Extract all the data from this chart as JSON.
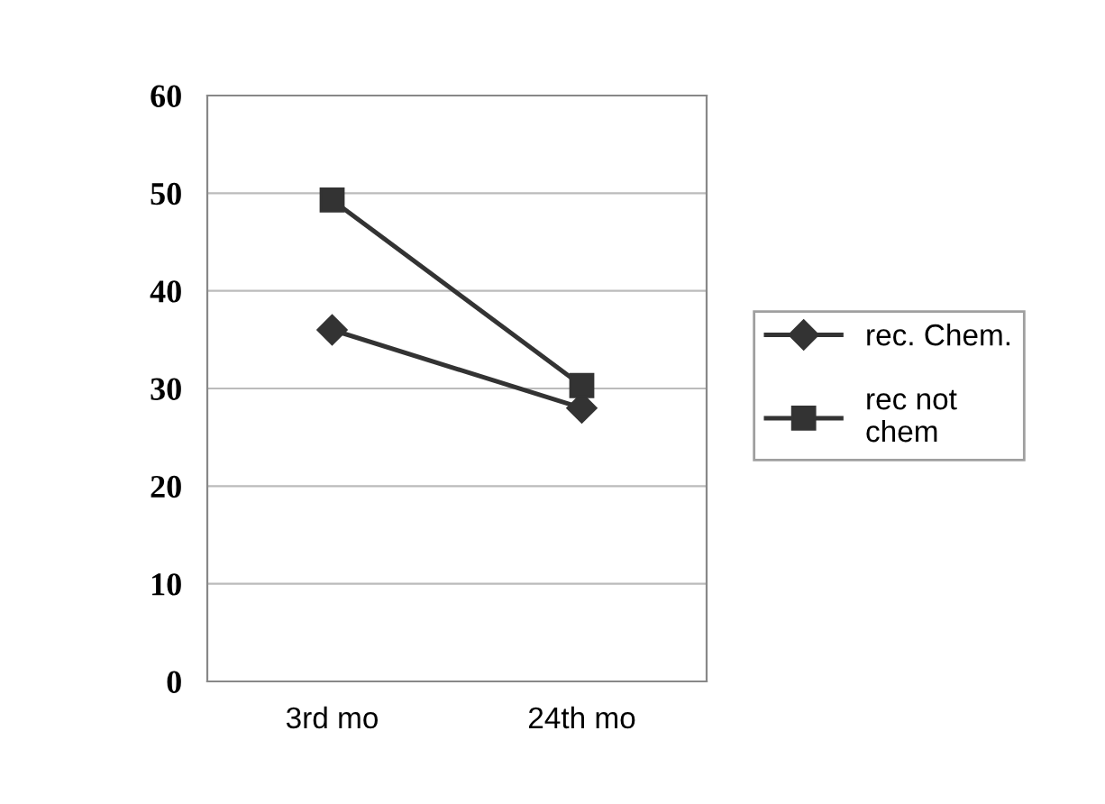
{
  "chart_data": {
    "type": "line",
    "categories": [
      "3rd mo",
      "24th mo"
    ],
    "series": [
      {
        "name": "rec. Chem.",
        "color": "#333333",
        "values": [
          36,
          28
        ],
        "marker": "diamond"
      },
      {
        "name": "rec not\nchem",
        "color": "#333333",
        "values": [
          49.3,
          30.3
        ],
        "marker": "square"
      }
    ],
    "ylim": [
      0,
      60
    ],
    "yticks": [
      0,
      10,
      20,
      30,
      40,
      50,
      60
    ],
    "grid": "y",
    "legend": "right",
    "line_style": "solid"
  }
}
